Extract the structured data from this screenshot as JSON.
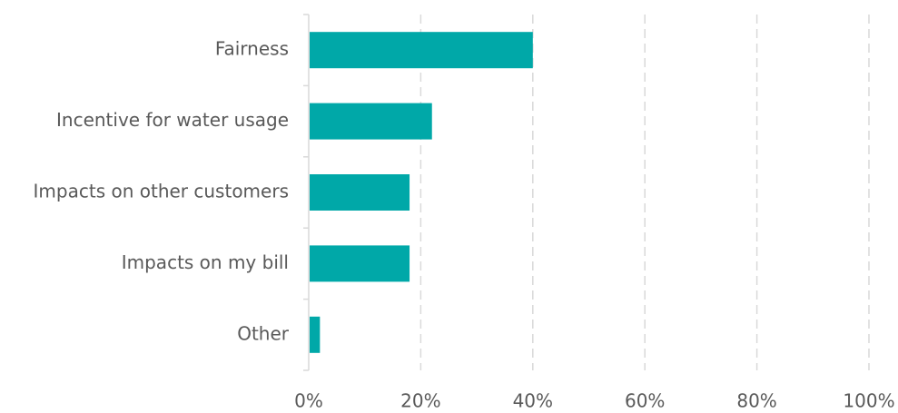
{
  "chart_data": {
    "type": "bar",
    "orientation": "horizontal",
    "categories": [
      "Fairness",
      "Incentive for water usage",
      "Impacts on other customers",
      "Impacts on my bill",
      "Other"
    ],
    "values": [
      40,
      22,
      18,
      18,
      2
    ],
    "title": "",
    "xlabel": "",
    "ylabel": "",
    "xlim": [
      0,
      100
    ],
    "x_ticks": [
      "0%",
      "20%",
      "40%",
      "60%",
      "80%",
      "100%"
    ],
    "grid": "vertical dashed",
    "legend": "none",
    "colors": {
      "bar": "#00A8A8",
      "text": "#595959",
      "grid": "#D9D9D9",
      "axis": "#D9D9D9"
    }
  }
}
